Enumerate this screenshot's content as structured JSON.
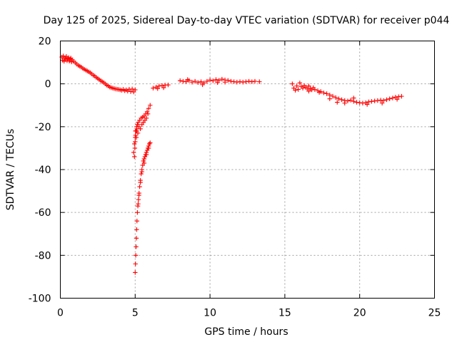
{
  "chart_data": {
    "type": "scatter",
    "title": "Day 125 of 2025, Sidereal Day-to-day VTEC variation (SDTVAR) for receiver p044",
    "xlabel": "GPS time / hours",
    "ylabel": "SDTVAR / TECUs",
    "xlim": [
      0,
      25
    ],
    "ylim": [
      -100,
      20
    ],
    "xticks": [
      "0",
      "5",
      "10",
      "15",
      "20",
      "25"
    ],
    "yticks": [
      "20",
      "0",
      "-20",
      "-40",
      "-60",
      "-80",
      "-100"
    ],
    "grid": true,
    "series": [
      {
        "name": "SDTVAR",
        "color": "#ff0000",
        "marker": "plus",
        "points": [
          [
            0.1,
            12.5
          ],
          [
            0.15,
            11.0
          ],
          [
            0.2,
            13.0
          ],
          [
            0.25,
            10.5
          ],
          [
            0.3,
            12.0
          ],
          [
            0.35,
            11.5
          ],
          [
            0.4,
            12.8
          ],
          [
            0.45,
            10.8
          ],
          [
            0.5,
            11.8
          ],
          [
            0.55,
            12.2
          ],
          [
            0.6,
            10.6
          ],
          [
            0.65,
            11.6
          ],
          [
            0.7,
            12.0
          ],
          [
            0.75,
            10.2
          ],
          [
            0.8,
            11.2
          ],
          [
            0.9,
            10.5
          ],
          [
            1.0,
            9.8
          ],
          [
            1.1,
            9.2
          ],
          [
            1.2,
            8.6
          ],
          [
            1.3,
            8.2
          ],
          [
            1.4,
            7.8
          ],
          [
            1.5,
            7.2
          ],
          [
            1.6,
            6.8
          ],
          [
            1.7,
            6.4
          ],
          [
            1.8,
            6.0
          ],
          [
            1.9,
            5.6
          ],
          [
            2.0,
            5.2
          ],
          [
            2.1,
            4.6
          ],
          [
            2.2,
            4.0
          ],
          [
            2.3,
            3.6
          ],
          [
            2.4,
            3.0
          ],
          [
            2.5,
            2.5
          ],
          [
            2.6,
            2.0
          ],
          [
            2.7,
            1.5
          ],
          [
            2.8,
            1.0
          ],
          [
            2.9,
            0.6
          ],
          [
            3.0,
            0.0
          ],
          [
            3.1,
            -0.6
          ],
          [
            3.2,
            -1.0
          ],
          [
            3.3,
            -1.5
          ],
          [
            3.4,
            -1.8
          ],
          [
            3.5,
            -2.0
          ],
          [
            3.6,
            -2.2
          ],
          [
            3.7,
            -2.4
          ],
          [
            3.8,
            -2.5
          ],
          [
            3.9,
            -2.6
          ],
          [
            4.0,
            -2.8
          ],
          [
            4.1,
            -3.0
          ],
          [
            4.2,
            -2.6
          ],
          [
            4.3,
            -3.2
          ],
          [
            4.4,
            -2.8
          ],
          [
            4.5,
            -3.4
          ],
          [
            4.6,
            -2.5
          ],
          [
            4.7,
            -3.6
          ],
          [
            4.8,
            -2.4
          ],
          [
            4.9,
            -3.8
          ],
          [
            5.0,
            -2.8
          ],
          [
            4.95,
            -34
          ],
          [
            4.98,
            -30
          ],
          [
            5.0,
            -27
          ],
          [
            5.02,
            -24
          ],
          [
            5.05,
            -22
          ],
          [
            5.1,
            -20
          ],
          [
            5.15,
            -19
          ],
          [
            5.2,
            -18
          ],
          [
            5.3,
            -17
          ],
          [
            5.4,
            -16
          ],
          [
            5.5,
            -15.5
          ],
          [
            5.6,
            -15
          ],
          [
            5.7,
            -14
          ],
          [
            5.8,
            -13
          ],
          [
            5.9,
            -11.5
          ],
          [
            6.0,
            -10
          ],
          [
            5.02,
            -22
          ],
          [
            5.08,
            -25
          ],
          [
            5.12,
            -21
          ],
          [
            5.18,
            -23
          ],
          [
            5.25,
            -20
          ],
          [
            5.35,
            -21
          ],
          [
            5.45,
            -19
          ],
          [
            5.55,
            -18
          ],
          [
            5.65,
            -17
          ],
          [
            5.75,
            -16
          ],
          [
            5.85,
            -14
          ],
          [
            4.9,
            -32
          ],
          [
            4.95,
            -28
          ],
          [
            5.0,
            -25
          ],
          [
            5.1,
            -22
          ],
          [
            5.0,
            -88
          ],
          [
            5.02,
            -84
          ],
          [
            5.04,
            -80
          ],
          [
            5.06,
            -76
          ],
          [
            5.08,
            -72
          ],
          [
            5.1,
            -68
          ],
          [
            5.12,
            -64
          ],
          [
            5.15,
            -60
          ],
          [
            5.18,
            -57
          ],
          [
            5.22,
            -54
          ],
          [
            5.26,
            -51
          ],
          [
            5.3,
            -48
          ],
          [
            5.35,
            -45
          ],
          [
            5.4,
            -42
          ],
          [
            5.45,
            -40
          ],
          [
            5.5,
            -38
          ],
          [
            5.55,
            -36
          ],
          [
            5.6,
            -35
          ],
          [
            5.65,
            -34
          ],
          [
            5.7,
            -33
          ],
          [
            5.75,
            -32
          ],
          [
            5.8,
            -31
          ],
          [
            5.85,
            -30
          ],
          [
            5.9,
            -29
          ],
          [
            5.95,
            -28
          ],
          [
            6.0,
            -27.5
          ],
          [
            5.2,
            -56
          ],
          [
            5.25,
            -52
          ],
          [
            5.35,
            -46
          ],
          [
            5.45,
            -41
          ],
          [
            5.6,
            -37
          ],
          [
            5.75,
            -33
          ],
          [
            5.9,
            -30
          ],
          [
            6.2,
            -2.0
          ],
          [
            6.4,
            -1.5
          ],
          [
            6.6,
            -1.0
          ],
          [
            6.8,
            -0.8
          ],
          [
            7.0,
            -0.6
          ],
          [
            7.2,
            -0.5
          ],
          [
            6.5,
            -2.2
          ],
          [
            6.9,
            -1.8
          ],
          [
            8.0,
            1.5
          ],
          [
            8.2,
            1.2
          ],
          [
            8.4,
            1.0
          ],
          [
            8.6,
            1.6
          ],
          [
            8.8,
            0.8
          ],
          [
            9.0,
            1.2
          ],
          [
            9.2,
            0.6
          ],
          [
            9.4,
            1.0
          ],
          [
            9.6,
            0.4
          ],
          [
            9.8,
            1.2
          ],
          [
            10.0,
            1.8
          ],
          [
            10.2,
            1.4
          ],
          [
            10.4,
            2.0
          ],
          [
            10.6,
            1.6
          ],
          [
            10.8,
            2.2
          ],
          [
            11.0,
            1.8
          ],
          [
            11.2,
            1.6
          ],
          [
            11.4,
            1.2
          ],
          [
            11.6,
            1.0
          ],
          [
            11.8,
            0.8
          ],
          [
            12.0,
            1.0
          ],
          [
            12.2,
            0.8
          ],
          [
            12.4,
            1.0
          ],
          [
            12.6,
            1.2
          ],
          [
            12.8,
            1.0
          ],
          [
            13.0,
            1.2
          ],
          [
            13.3,
            1.0
          ],
          [
            9.5,
            -0.4
          ],
          [
            10.5,
            0.6
          ],
          [
            11.0,
            0.8
          ],
          [
            8.5,
            2.0
          ],
          [
            15.5,
            0.0
          ],
          [
            15.6,
            -2.0
          ],
          [
            15.7,
            -3.0
          ],
          [
            15.8,
            -1.0
          ],
          [
            15.9,
            -2.6
          ],
          [
            16.0,
            0.4
          ],
          [
            16.1,
            -1.2
          ],
          [
            16.2,
            -2.0
          ],
          [
            16.3,
            -0.8
          ],
          [
            16.4,
            -1.6
          ],
          [
            16.5,
            -2.4
          ],
          [
            16.6,
            -1.0
          ],
          [
            16.7,
            -2.2
          ],
          [
            16.8,
            -2.8
          ],
          [
            16.9,
            -1.8
          ],
          [
            17.0,
            -2.6
          ],
          [
            17.2,
            -3.2
          ],
          [
            17.4,
            -3.6
          ],
          [
            17.6,
            -4.2
          ],
          [
            17.8,
            -4.6
          ],
          [
            18.0,
            -5.2
          ],
          [
            18.2,
            -5.8
          ],
          [
            18.4,
            -6.4
          ],
          [
            18.6,
            -7.0
          ],
          [
            18.8,
            -7.4
          ],
          [
            19.0,
            -7.8
          ],
          [
            19.2,
            -8.0
          ],
          [
            19.4,
            -7.6
          ],
          [
            19.6,
            -8.2
          ],
          [
            19.8,
            -8.6
          ],
          [
            20.0,
            -8.8
          ],
          [
            20.2,
            -9.0
          ],
          [
            20.4,
            -8.8
          ],
          [
            20.6,
            -8.4
          ],
          [
            20.8,
            -8.2
          ],
          [
            21.0,
            -8.0
          ],
          [
            21.2,
            -7.8
          ],
          [
            21.4,
            -7.6
          ],
          [
            21.6,
            -7.8
          ],
          [
            21.8,
            -7.4
          ],
          [
            22.0,
            -7.0
          ],
          [
            22.2,
            -6.6
          ],
          [
            22.4,
            -6.2
          ],
          [
            22.6,
            -6.0
          ],
          [
            22.8,
            -5.8
          ],
          [
            18.5,
            -8.6
          ],
          [
            19.0,
            -9.0
          ],
          [
            19.6,
            -6.6
          ],
          [
            20.5,
            -9.6
          ],
          [
            21.5,
            -9.0
          ],
          [
            22.5,
            -7.2
          ],
          [
            16.6,
            -3.4
          ],
          [
            17.3,
            -4.0
          ],
          [
            18.0,
            -7.0
          ]
        ]
      }
    ]
  }
}
